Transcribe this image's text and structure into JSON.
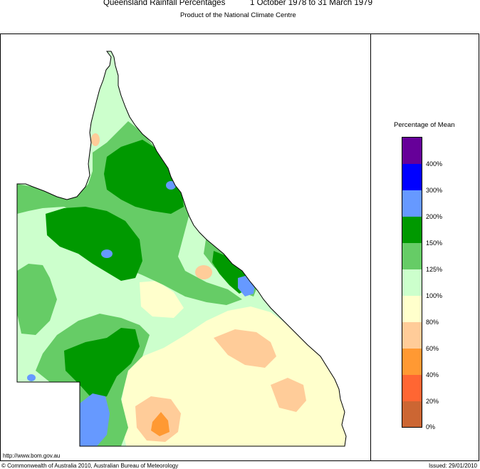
{
  "header": {
    "title": "Queensland Rainfall Percentages",
    "period": "1 October 1978 to 31 March 1979",
    "subtitle": "Product of the National Climate Centre"
  },
  "legend": {
    "title": "Percentage of Mean",
    "labels": [
      "400%",
      "300%",
      "200%",
      "150%",
      "125%",
      "100%",
      "80%",
      "60%",
      "40%",
      "20%",
      "0%"
    ],
    "colors": [
      "#660099",
      "#0000ff",
      "#6699ff",
      "#009900",
      "#66cc66",
      "#ccffcc",
      "#ffffcc",
      "#ffcc99",
      "#ff9933",
      "#ff6633",
      "#cc6633"
    ]
  },
  "footer": {
    "url": "http://www.bom.gov.au",
    "copyright": "© Commonwealth of Australia 2010, Australian Bureau of Meteorology",
    "issued": "Issued: 29/01/2010"
  }
}
